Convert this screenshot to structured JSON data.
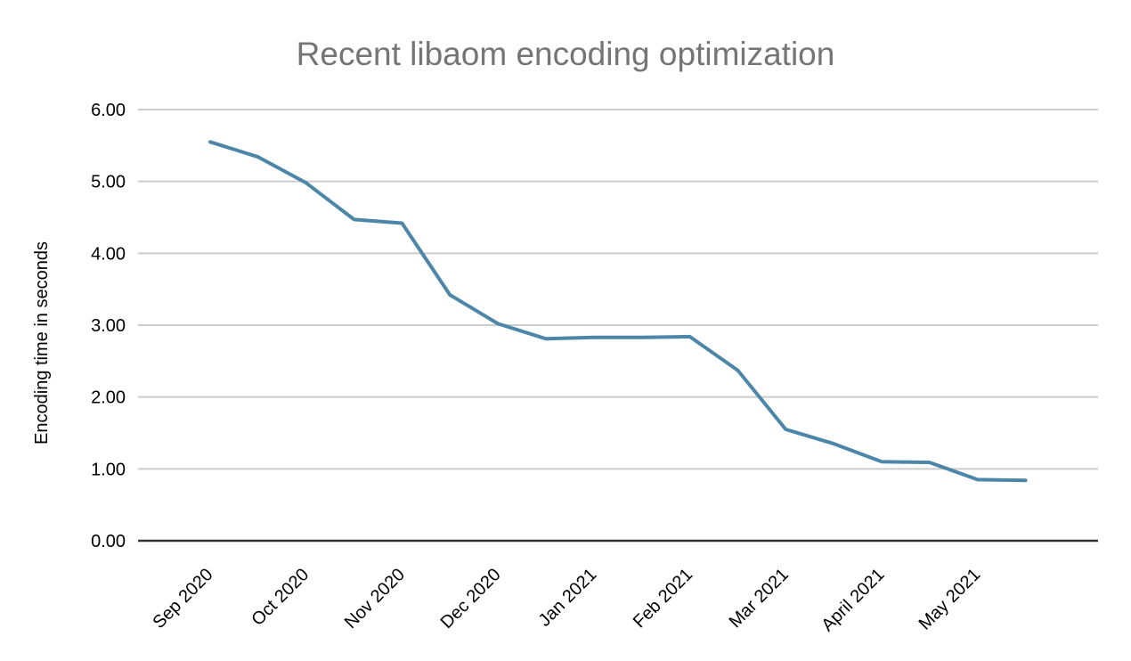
{
  "page": {
    "background": "#ffffff"
  },
  "chart_data": {
    "type": "line",
    "title": "Recent libaom encoding optimization",
    "title_color": "#757575",
    "xlabel": "",
    "ylabel": "Encoding time in seconds",
    "ylim": [
      0,
      6
    ],
    "y_tick_labels": [
      "0.00",
      "1.00",
      "2.00",
      "3.00",
      "4.00",
      "5.00",
      "6.00"
    ],
    "x_tick_labels": [
      "Sep 2020",
      "Oct 2020",
      "Nov 2020",
      "Dec 2020",
      "Jan 2021",
      "Feb 2021",
      "Mar 2021",
      "April 2021",
      "May 2021"
    ],
    "sampling": "two points per month (semi-monthly), first point of each pair aligned with month tick",
    "series": [
      {
        "name": "Encoding time",
        "values": [
          5.55,
          5.34,
          4.98,
          4.47,
          4.42,
          3.42,
          3.02,
          2.81,
          2.83,
          2.83,
          2.84,
          2.37,
          1.55,
          1.35,
          1.1,
          1.09,
          0.85,
          0.84
        ]
      }
    ],
    "line_color": "#4c86a8",
    "grid": true,
    "grid_color": "#cccccc",
    "axis_color": "#333333",
    "legend": "none"
  }
}
